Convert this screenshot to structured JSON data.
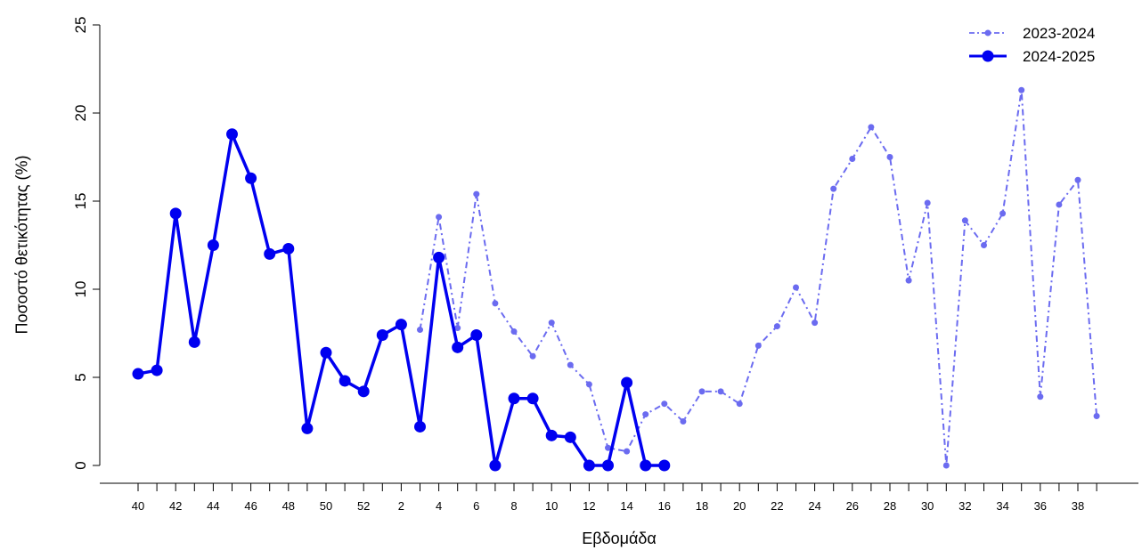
{
  "chart_data": {
    "type": "line",
    "title": "",
    "xlabel": "Εβδομάδα",
    "ylabel": "Ποσοστό θετικότητας (%)",
    "ylim": [
      0,
      25
    ],
    "yticks": [
      "0",
      "5",
      "10",
      "15",
      "20",
      "25"
    ],
    "x_ticks": [
      "40",
      "41",
      "42",
      "43",
      "44",
      "45",
      "46",
      "47",
      "48",
      "49",
      "50",
      "51",
      "52",
      "1",
      "2",
      "3",
      "4",
      "5",
      "6",
      "7",
      "8",
      "9",
      "10",
      "11",
      "12",
      "13",
      "14",
      "15",
      "16",
      "17",
      "18",
      "19",
      "20",
      "21",
      "22",
      "23",
      "24",
      "25",
      "26",
      "27",
      "28",
      "29",
      "30",
      "31",
      "32",
      "33",
      "34",
      "35",
      "36",
      "37",
      "38",
      "39"
    ],
    "x_tick_labels": [
      "40",
      "",
      "42",
      "",
      "44",
      "",
      "46",
      "",
      "48",
      "",
      "50",
      "",
      "52",
      "",
      "2",
      "",
      "4",
      "",
      "6",
      "",
      "8",
      "",
      "10",
      "",
      "12",
      "",
      "14",
      "",
      "16",
      "",
      "18",
      "",
      "20",
      "",
      "22",
      "",
      "24",
      "",
      "26",
      "",
      "28",
      "",
      "30",
      "",
      "32",
      "",
      "34",
      "",
      "36",
      "",
      "38",
      ""
    ],
    "grid": false,
    "legend_position": "top-right",
    "series": [
      {
        "name": "2023-2024",
        "color": "#6b6bf0",
        "style": "dashdot",
        "start_index": 15,
        "values": [
          7.7,
          14.1,
          7.8,
          15.4,
          9.2,
          7.6,
          6.2,
          8.1,
          5.7,
          4.6,
          1.0,
          0.8,
          2.9,
          3.5,
          2.5,
          4.2,
          4.2,
          3.5,
          6.8,
          7.9,
          10.1,
          8.1,
          15.7,
          17.4,
          19.2,
          17.5,
          10.5,
          14.9,
          0.0,
          13.9,
          12.5,
          14.3,
          21.3,
          3.9,
          14.8,
          16.2,
          2.8
        ]
      },
      {
        "name": "2024-2025",
        "color": "#0000f0",
        "style": "solid",
        "start_index": 0,
        "values": [
          5.2,
          5.4,
          14.3,
          7.0,
          12.5,
          18.8,
          16.3,
          12.0,
          12.3,
          2.1,
          6.4,
          4.8,
          4.2,
          7.4,
          8.0,
          2.2,
          11.8,
          6.7,
          7.4,
          0.0,
          3.8,
          3.8,
          1.7,
          1.6,
          0.0,
          0.0,
          4.7,
          0.0,
          0.0
        ]
      }
    ]
  }
}
